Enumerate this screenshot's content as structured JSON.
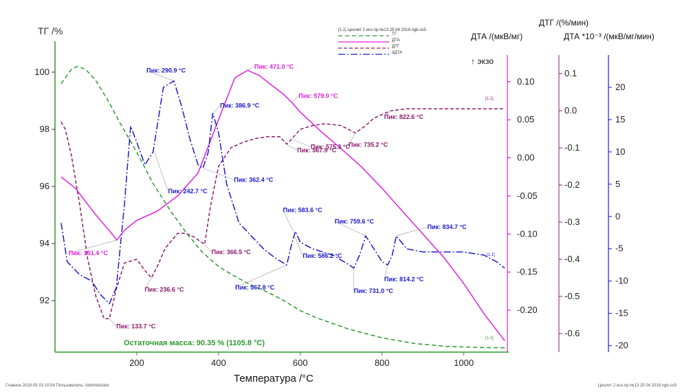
{
  "chart_data": {
    "type": "line",
    "xlabel": "Температура /°C",
    "x_ticks": [
      "200",
      "400",
      "600",
      "800",
      "1000"
    ],
    "xlim": [
      0,
      1110
    ],
    "axes": [
      {
        "id": "tg",
        "label": "ТГ /%",
        "ylim": [
          90.2,
          100.6
        ],
        "ticks": [
          "100",
          "98",
          "96",
          "94",
          "92"
        ],
        "color": "#333333"
      },
      {
        "id": "dta",
        "label": "ДТА /(мкВ/мг)",
        "ylim": [
          -0.255,
          0.135
        ],
        "ticks": [
          "0.10",
          "0.05",
          "0.00",
          "-0.05",
          "-0.10",
          "-0.15",
          "-0.20"
        ],
        "color": "#cc00cc"
      },
      {
        "id": "dtg",
        "label": "ДТГ /(%/мин)",
        "ylim": [
          -0.65,
          0.15
        ],
        "ticks": [
          "0.1",
          "0.0",
          "-0.1",
          "-0.2",
          "-0.3",
          "-0.4",
          "-0.5",
          "-0.6"
        ],
        "color": "#8b1a6b"
      },
      {
        "id": "ddta",
        "label": "ДТА *10⁻³ /(мкВ/мг/мин)",
        "ylim": [
          -21,
          25
        ],
        "ticks": [
          "20",
          "15",
          "10",
          "5",
          "0",
          "-5",
          "-10",
          "-15",
          "-20"
        ],
        "color": "#1a1acc"
      }
    ],
    "exo_label": "↑ экзо",
    "legend_title": "[1.1] Цеолит 2 исх.пр.№13 25 04 2018.ngb-ss5",
    "series": [
      {
        "name": "ТГ",
        "axis": "tg",
        "color": "#2a9a2a",
        "dash": "6,4",
        "x": [
          15,
          40,
          55,
          75,
          100,
          130,
          160,
          200,
          240,
          280,
          320,
          360,
          400,
          440,
          480,
          520,
          560,
          600,
          640,
          680,
          720,
          760,
          800,
          840,
          880,
          920,
          960,
          1000,
          1050,
          1100
        ],
        "y": [
          99.6,
          100.1,
          100.2,
          100.1,
          99.7,
          99.0,
          98.2,
          97.2,
          96.1,
          95.2,
          94.4,
          93.7,
          93.2,
          92.85,
          92.55,
          92.3,
          92.0,
          91.65,
          91.4,
          91.2,
          91.0,
          90.85,
          90.7,
          90.6,
          90.5,
          90.45,
          90.4,
          90.38,
          90.36,
          90.35
        ]
      },
      {
        "name": "ДТА",
        "axis": "dta",
        "color": "#e020e0",
        "dash": "",
        "x": [
          15,
          50,
          100,
          140,
          151,
          170,
          200,
          250,
          300,
          350,
          400,
          440,
          471,
          500,
          560,
          579,
          600,
          650,
          700,
          750,
          800,
          850,
          900,
          950,
          1000,
          1050,
          1100
        ],
        "y": [
          -0.025,
          -0.04,
          -0.075,
          -0.1,
          -0.108,
          -0.095,
          -0.082,
          -0.07,
          -0.05,
          -0.02,
          0.05,
          0.105,
          0.115,
          0.108,
          0.083,
          0.073,
          0.06,
          0.035,
          0.012,
          -0.012,
          -0.04,
          -0.07,
          -0.1,
          -0.13,
          -0.165,
          -0.205,
          -0.24
        ]
      },
      {
        "name": "ДТГ",
        "axis": "dtg",
        "color": "#8b1a6b",
        "dash": "5,3",
        "x": [
          15,
          25,
          40,
          60,
          80,
          100,
          120,
          133,
          150,
          170,
          200,
          220,
          236,
          250,
          270,
          300,
          320,
          340,
          366,
          380,
          400,
          430,
          460,
          490,
          520,
          550,
          567,
          580,
          600,
          630,
          660,
          700,
          735,
          760,
          780,
          800,
          822,
          860,
          900,
          950,
          1000,
          1050,
          1100
        ],
        "y": [
          -0.03,
          -0.05,
          -0.12,
          -0.25,
          -0.4,
          -0.5,
          -0.56,
          -0.56,
          -0.48,
          -0.41,
          -0.4,
          -0.43,
          -0.45,
          -0.42,
          -0.37,
          -0.33,
          -0.33,
          -0.34,
          -0.36,
          -0.26,
          -0.15,
          -0.1,
          -0.085,
          -0.075,
          -0.07,
          -0.07,
          -0.09,
          -0.075,
          -0.05,
          -0.04,
          -0.035,
          -0.04,
          -0.06,
          -0.04,
          -0.02,
          -0.01,
          0.0,
          0.005,
          0.005,
          0.005,
          0.005,
          0.005,
          0.005
        ]
      },
      {
        "name": "dДТА",
        "axis": "ddta",
        "color": "#1a1acc",
        "dash": "10,3,2,3",
        "x": [
          15,
          30,
          60,
          90,
          110,
          133,
          150,
          170,
          185,
          200,
          220,
          240,
          265,
          291,
          310,
          330,
          350,
          362,
          375,
          386,
          400,
          420,
          450,
          480,
          510,
          540,
          567,
          580,
          588,
          600,
          630,
          680,
          720,
          731,
          745,
          760,
          780,
          800,
          814,
          825,
          835,
          860,
          900,
          950,
          1000,
          1050,
          1080,
          1100
        ],
        "y": [
          -1,
          -7,
          -9,
          -10,
          -12,
          -13.5,
          -11,
          2,
          14,
          11.5,
          8,
          10,
          20,
          21,
          17,
          12,
          8,
          7.5,
          10,
          16,
          13,
          5,
          -1,
          -3,
          -5,
          -6.5,
          -7.5,
          -4,
          -2.3,
          -4,
          -5,
          -6,
          -7.5,
          -8,
          -6,
          -3,
          -5,
          -7,
          -7.5,
          -6,
          -3,
          -5,
          -5.5,
          -5.5,
          -5.5,
          -6,
          -7,
          -8
        ]
      }
    ],
    "annotations": [
      {
        "text": "Пик: 471.0 °C",
        "color": "#e020e0",
        "x": 471,
        "axis": "dta",
        "y": 0.115
      },
      {
        "text": "Пик: 579.0 °C",
        "color": "#e020e0",
        "x": 579,
        "axis": "dta",
        "y": 0.073
      },
      {
        "text": "Пик: 151.4 °C",
        "color": "#e020e0",
        "x": 151,
        "axis": "dta",
        "y": -0.108
      },
      {
        "text": "Пик: 290.9 °C",
        "color": "#1a1acc",
        "x": 291,
        "axis": "ddta",
        "y": 21
      },
      {
        "text": "Пик: 386.9 °C",
        "color": "#1a1acc",
        "x": 387,
        "axis": "ddta",
        "y": 16
      },
      {
        "text": "Пик: 362.4 °C",
        "color": "#1a1acc",
        "x": 362,
        "axis": "ddta",
        "y": 7.5
      },
      {
        "text": "Пик: 583.6 °C",
        "color": "#1a1acc",
        "x": 583,
        "axis": "ddta",
        "y": -2.3
      },
      {
        "text": "Пик: 567.8 °C",
        "color": "#1a1acc",
        "x": 567,
        "axis": "ddta",
        "y": -7.5
      },
      {
        "text": "Пик: 586.2 °C",
        "color": "#1a1acc",
        "x": 586,
        "axis": "ddta",
        "y": -3
      },
      {
        "text": "Пик: 759.6 °C",
        "color": "#1a1acc",
        "x": 760,
        "axis": "ddta",
        "y": -3
      },
      {
        "text": "Пик: 731.0 °C",
        "color": "#1a1acc",
        "x": 731,
        "axis": "ddta",
        "y": -8
      },
      {
        "text": "Пик: 814.2 °C",
        "color": "#1a1acc",
        "x": 814,
        "axis": "ddta",
        "y": -7.5
      },
      {
        "text": "Пик: 834.7 °C",
        "color": "#1a1acc",
        "x": 835,
        "axis": "ddta",
        "y": -3
      },
      {
        "text": "Пик: 133.7 °C",
        "color": "#8b1a6b",
        "x": 133,
        "axis": "dtg",
        "y": -0.56
      },
      {
        "text": "Пик: 236.6 °C",
        "color": "#8b1a6b",
        "x": 236,
        "axis": "dtg",
        "y": -0.45
      },
      {
        "text": "Пик: 242.7 °C",
        "color": "#1a1acc",
        "x": 243,
        "axis": "ddta",
        "y": 10
      },
      {
        "text": "Пик: 366.5 °C",
        "color": "#8b1a6b",
        "x": 366,
        "axis": "dtg",
        "y": -0.36
      },
      {
        "text": "Пик: 567.9 °C",
        "color": "#8b1a6b",
        "x": 567,
        "axis": "dtg",
        "y": -0.09
      },
      {
        "text": "Пик: 735.2 °C",
        "color": "#8b1a6b",
        "x": 735,
        "axis": "dtg",
        "y": -0.06
      },
      {
        "text": "Пик: 575.3 °C",
        "color": "#8b1a6b",
        "x": 575,
        "axis": "dtg",
        "y": -0.075
      },
      {
        "text": "Пик: 822.6 °C",
        "color": "#8b1a6b",
        "x": 822,
        "axis": "dtg",
        "y": 0.0
      }
    ],
    "residual_mass": "Остаточная масса: 90.35 % (1105.8 °C)",
    "curve_tags": [
      "[1.1]",
      "[1.1]",
      "[1.1]"
    ],
    "grid": false
  },
  "footer": {
    "left": "Главное   2018-05-03 10:54   Пользователь: Administrator",
    "right": "Цеолит 2 исх.пр.№13 25 04 2018.ngb-ss5"
  }
}
